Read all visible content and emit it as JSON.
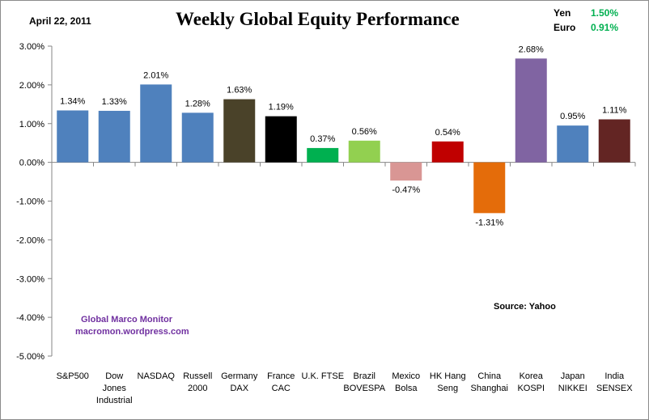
{
  "header": {
    "date": "April 22, 2011",
    "fx": [
      {
        "label": "Yen",
        "value": "1.50%"
      },
      {
        "label": "Euro",
        "value": "0.91%"
      }
    ]
  },
  "source": "Source:  Yahoo",
  "brand": {
    "name": "Global Marco Monitor",
    "site": "macromon.wordpress.com"
  },
  "colors": {
    "blue": "#4f81bd",
    "olive": "#4a4229",
    "black": "#000000",
    "green": "#00b050",
    "lightgreen": "#92d050",
    "pink": "#d99694",
    "red": "#c00000",
    "orange": "#e46c0a",
    "purple": "#8064a2",
    "maroon": "#632523",
    "fx_green": "#00b050",
    "brand_purple": "#7030a0"
  },
  "chart_data": {
    "type": "bar",
    "title": "Weekly Global Equity Performance",
    "xlabel": "",
    "ylabel": "",
    "ylim": [
      -5,
      3
    ],
    "yticks": [
      3,
      2,
      1,
      0,
      -1,
      -2,
      -3,
      -4,
      -5
    ],
    "ytick_labels": [
      "3.00%",
      "2.00%",
      "1.00%",
      "0.00%",
      "-1.00%",
      "-2.00%",
      "-3.00%",
      "-4.00%",
      "-5.00%"
    ],
    "grid": false,
    "legend": "none",
    "categories": [
      [
        "S&P500"
      ],
      [
        "Dow",
        "Jones",
        "Industrial"
      ],
      [
        "NASDAQ"
      ],
      [
        "Russell",
        "2000"
      ],
      [
        "Germany",
        "DAX"
      ],
      [
        "France",
        "CAC"
      ],
      [
        "U.K. FTSE"
      ],
      [
        "Brazil",
        "BOVESPA"
      ],
      [
        "Mexico",
        "Bolsa"
      ],
      [
        "HK Hang",
        "Seng"
      ],
      [
        "China",
        "Shanghai"
      ],
      [
        "Korea",
        "KOSPI"
      ],
      [
        "Japan",
        "NIKKEI"
      ],
      [
        "India",
        "SENSEX"
      ]
    ],
    "values": [
      1.34,
      1.33,
      2.01,
      1.28,
      1.63,
      1.19,
      0.37,
      0.56,
      -0.47,
      0.54,
      -1.31,
      2.68,
      0.95,
      1.11
    ],
    "data_labels": [
      "1.34%",
      "1.33%",
      "2.01%",
      "1.28%",
      "1.63%",
      "1.19%",
      "0.37%",
      "0.56%",
      "-0.47%",
      "0.54%",
      "-1.31%",
      "2.68%",
      "0.95%",
      "1.11%"
    ],
    "bar_colors": [
      "#4f81bd",
      "#4f81bd",
      "#4f81bd",
      "#4f81bd",
      "#4a4229",
      "#000000",
      "#00b050",
      "#92d050",
      "#d99694",
      "#c00000",
      "#e46c0a",
      "#8064a2",
      "#4f81bd",
      "#632523"
    ]
  }
}
